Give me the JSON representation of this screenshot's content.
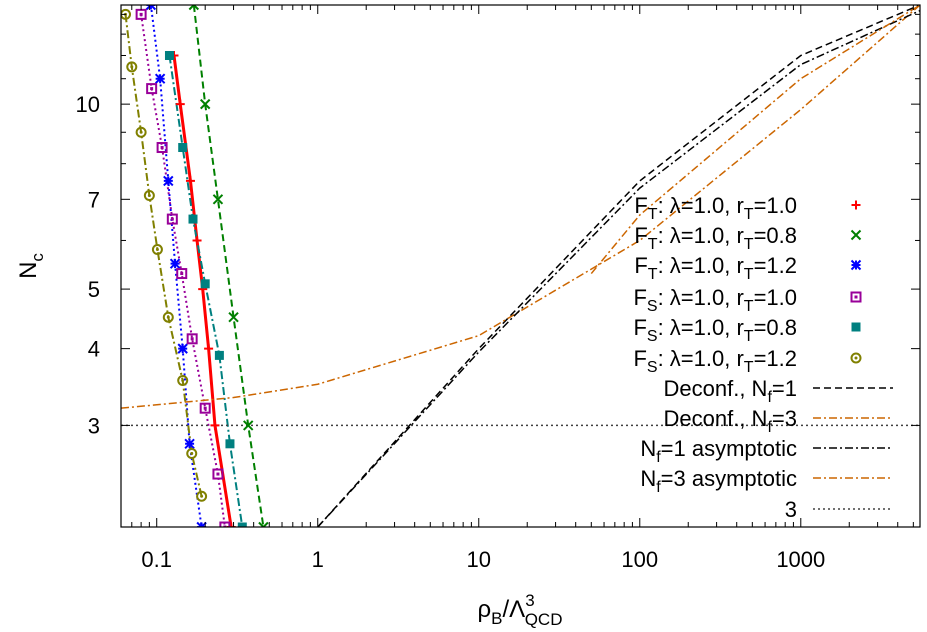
{
  "chart_data": {
    "type": "line",
    "xlabel": {
      "base": "ρ",
      "sub1": "B",
      "mid": "/Λ",
      "sup": "3",
      "sub2": "QCD"
    },
    "ylabel": {
      "base": "N",
      "sub": "c"
    },
    "x_scale": "log",
    "y_scale": "log",
    "xlim": [
      0.06,
      5500
    ],
    "ylim": [
      2.05,
      14.5
    ],
    "x_ticks": [
      {
        "value": 0.1,
        "label": "0.1"
      },
      {
        "value": 1,
        "label": "1"
      },
      {
        "value": 10,
        "label": "10"
      },
      {
        "value": 100,
        "label": "100"
      },
      {
        "value": 1000,
        "label": "1000"
      }
    ],
    "y_ticks": [
      {
        "value": 3,
        "label": "3"
      },
      {
        "value": 4,
        "label": "4"
      },
      {
        "value": 5,
        "label": "5"
      },
      {
        "value": 7,
        "label": "7"
      },
      {
        "value": 10,
        "label": "10"
      }
    ],
    "grid": false,
    "legend_position": "right",
    "series": [
      {
        "name": "F_T: λ=1.0, r_T=1.0",
        "legend": {
          "pre": "F",
          "sub": "T",
          "mid": ": λ=1.0, r",
          "sub2": "T",
          "post": "=1.0"
        },
        "color": "#ff0000",
        "marker": "plus",
        "line": "solid",
        "width": 3,
        "points": [
          [
            0.128,
            12.0
          ],
          [
            0.14,
            10.0
          ],
          [
            0.162,
            7.5
          ],
          [
            0.178,
            6.0
          ],
          [
            0.193,
            5.0
          ],
          [
            0.21,
            4.0
          ],
          [
            0.23,
            3.0
          ],
          [
            0.29,
            2.05
          ]
        ]
      },
      {
        "name": "F_T: λ=1.0, r_T=0.8",
        "legend": {
          "pre": "F",
          "sub": "T",
          "mid": ": λ=1.0, r",
          "sub2": "T",
          "post": "=0.8"
        },
        "color": "#008000",
        "marker": "x",
        "line": "dash",
        "width": 2,
        "points": [
          [
            0.17,
            14.5
          ],
          [
            0.2,
            10.0
          ],
          [
            0.24,
            7.0
          ],
          [
            0.3,
            4.5
          ],
          [
            0.37,
            3.0
          ],
          [
            0.46,
            2.05
          ]
        ]
      },
      {
        "name": "F_T: λ=1.0, r_T=1.2",
        "legend": {
          "pre": "F",
          "sub": "T",
          "mid": ": λ=1.0, r",
          "sub2": "T",
          "post": "=1.2"
        },
        "color": "#0000ff",
        "marker": "star",
        "line": "dot",
        "width": 2,
        "points": [
          [
            0.092,
            14.5
          ],
          [
            0.105,
            11.0
          ],
          [
            0.118,
            7.5
          ],
          [
            0.13,
            5.5
          ],
          [
            0.145,
            4.0
          ],
          [
            0.16,
            2.8
          ],
          [
            0.19,
            2.05
          ]
        ]
      },
      {
        "name": "F_S: λ=1.0, r_T=1.0",
        "legend": {
          "pre": "F",
          "sub": "S",
          "mid": ": λ=1.0, r",
          "sub2": "T",
          "post": "=1.0"
        },
        "color": "#990099",
        "marker": "box",
        "line": "dot",
        "width": 2,
        "points": [
          [
            0.08,
            14.0
          ],
          [
            0.093,
            10.6
          ],
          [
            0.108,
            8.5
          ],
          [
            0.125,
            6.5
          ],
          [
            0.143,
            5.3
          ],
          [
            0.166,
            4.15
          ],
          [
            0.2,
            3.2
          ],
          [
            0.24,
            2.5
          ],
          [
            0.265,
            2.05
          ]
        ]
      },
      {
        "name": "F_S: λ=1.0, r_T=0.8",
        "legend": {
          "pre": "F",
          "sub": "S",
          "mid": ": λ=1.0, r",
          "sub2": "T",
          "post": "=0.8"
        },
        "color": "#008080",
        "marker": "square",
        "line": "dashdot",
        "width": 2,
        "points": [
          [
            0.12,
            12.0
          ],
          [
            0.145,
            8.5
          ],
          [
            0.168,
            6.5
          ],
          [
            0.2,
            5.1
          ],
          [
            0.245,
            3.9
          ],
          [
            0.285,
            2.8
          ],
          [
            0.34,
            2.05
          ]
        ]
      },
      {
        "name": "F_S: λ=1.0, r_T=1.2",
        "legend": {
          "pre": "F",
          "sub": "S",
          "mid": ": λ=1.0, r",
          "sub2": "T",
          "post": "=1.2"
        },
        "color": "#808000",
        "marker": "circle",
        "line": "dashdot",
        "width": 2,
        "points": [
          [
            0.064,
            14.0
          ],
          [
            0.07,
            11.5
          ],
          [
            0.08,
            9.0
          ],
          [
            0.09,
            7.1
          ],
          [
            0.101,
            5.8
          ],
          [
            0.118,
            4.5
          ],
          [
            0.145,
            3.55
          ],
          [
            0.165,
            2.7
          ],
          [
            0.19,
            2.3
          ]
        ]
      },
      {
        "name": "Deconf., N_f=1",
        "legend": {
          "pre": "Deconf., N",
          "sub": "f",
          "post": "=1"
        },
        "color": "#000000",
        "marker": "none",
        "line": "dash",
        "width": 1.5,
        "points": [
          [
            1.0,
            2.05
          ],
          [
            10,
            4.0
          ],
          [
            100,
            7.5
          ],
          [
            1000,
            12.0
          ],
          [
            5500,
            14.5
          ]
        ]
      },
      {
        "name": "Deconf., N_f=3",
        "legend": {
          "pre": "Deconf., N",
          "sub": "f",
          "post": "=3"
        },
        "color": "#cc6600",
        "marker": "none",
        "line": "dashdot",
        "width": 1.5,
        "points": [
          [
            0.06,
            3.2
          ],
          [
            0.3,
            3.33
          ],
          [
            1,
            3.5
          ],
          [
            10,
            4.2
          ],
          [
            100,
            6.0
          ],
          [
            1000,
            9.8
          ],
          [
            5500,
            14.5
          ]
        ]
      },
      {
        "name": "N_f=1 asymptotic",
        "legend": {
          "pre": "N",
          "sub": "f",
          "post": "=1 asymptotic"
        },
        "color": "#000000",
        "marker": "none",
        "line": "dashdot",
        "width": 1.5,
        "points": [
          [
            1.0,
            2.05
          ],
          [
            10,
            3.95
          ],
          [
            100,
            7.3
          ],
          [
            1000,
            11.6
          ],
          [
            5500,
            14.2
          ]
        ]
      },
      {
        "name": "N_f=3 asymptotic",
        "legend": {
          "pre": "N",
          "sub": "f",
          "post": "=3 asymptotic"
        },
        "color": "#cc6600",
        "marker": "none",
        "line": "dashdot",
        "width": 1.5,
        "points": [
          [
            50,
            5.3
          ],
          [
            100,
            6.6
          ],
          [
            1000,
            11.0
          ],
          [
            5500,
            14.5
          ]
        ]
      },
      {
        "name": "3",
        "legend": {
          "pre": "3"
        },
        "color": "#404040",
        "marker": "none",
        "line": "dot",
        "width": 1.5,
        "points": [
          [
            0.06,
            3.0
          ],
          [
            5500,
            3.0
          ]
        ]
      }
    ]
  }
}
